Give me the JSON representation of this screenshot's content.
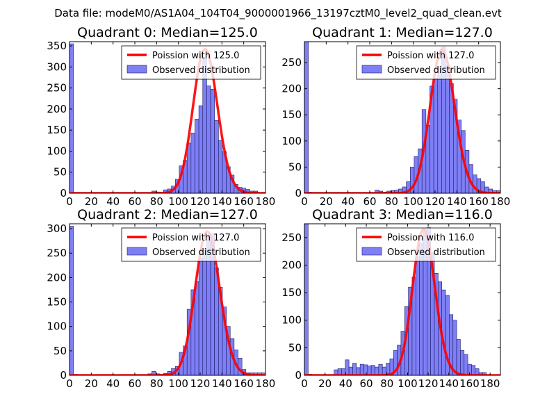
{
  "suptitle": "Data file: modeM0/AS1A04_104T04_9000001966_13197cztM0_level2_quad_clean.evt",
  "colors": {
    "bar_fill": "#7f7ff5",
    "bar_edge": "#1a1a66",
    "line": "#ff0000",
    "axis": "#000000"
  },
  "chart_data": [
    {
      "type": "bar",
      "title": "Quadrant 0: Median=125.0",
      "xlim": [
        0,
        180
      ],
      "ylim": [
        0,
        360
      ],
      "xticks": [
        0,
        20,
        40,
        60,
        80,
        100,
        120,
        140,
        160,
        180
      ],
      "xtick_labels": [
        "0",
        "20",
        "40",
        "60",
        "80",
        "100",
        "120",
        "140",
        "160",
        "180"
      ],
      "yticks": [
        0,
        50,
        100,
        150,
        200,
        250,
        300,
        350
      ],
      "ytick_labels": [
        "0",
        "50",
        "100",
        "150",
        "200",
        "250",
        "300",
        "350"
      ],
      "legend": {
        "line_label": "Poission with 125.0",
        "bar_label": "Observed distribution"
      },
      "poisson_mean": 125.0,
      "poisson_peak": 342,
      "bin_width": 3.6,
      "bins": [
        [
          0,
          355
        ],
        [
          3.6,
          2
        ],
        [
          7.2,
          1
        ],
        [
          10.8,
          1
        ],
        [
          14.4,
          1
        ],
        [
          18,
          1
        ],
        [
          21.6,
          1
        ],
        [
          25.2,
          1
        ],
        [
          28.8,
          1
        ],
        [
          32.4,
          1
        ],
        [
          36,
          1
        ],
        [
          39.6,
          1
        ],
        [
          43.2,
          1
        ],
        [
          46.8,
          1
        ],
        [
          50.4,
          1
        ],
        [
          54,
          1
        ],
        [
          57.6,
          1
        ],
        [
          61.2,
          1
        ],
        [
          64.8,
          1
        ],
        [
          68.4,
          1
        ],
        [
          72,
          1
        ],
        [
          75.6,
          5
        ],
        [
          79.2,
          3
        ],
        [
          82.8,
          2
        ],
        [
          86.4,
          8
        ],
        [
          90,
          10
        ],
        [
          93.6,
          17
        ],
        [
          97.2,
          33
        ],
        [
          100.8,
          65
        ],
        [
          104.4,
          78
        ],
        [
          108,
          119
        ],
        [
          111.6,
          143
        ],
        [
          115.2,
          176
        ],
        [
          118.8,
          208
        ],
        [
          122.4,
          320
        ],
        [
          126,
          255
        ],
        [
          129.6,
          247
        ],
        [
          133.2,
          173
        ],
        [
          136.8,
          125
        ],
        [
          140.4,
          99
        ],
        [
          144,
          63
        ],
        [
          147.6,
          43
        ],
        [
          151.2,
          21
        ],
        [
          154.8,
          14
        ],
        [
          158.4,
          12
        ],
        [
          162,
          9
        ],
        [
          165.6,
          5
        ],
        [
          169.2,
          5
        ],
        [
          172.8,
          1
        ],
        [
          176.4,
          1
        ]
      ]
    },
    {
      "type": "bar",
      "title": "Quadrant 1: Median=127.0",
      "xlim": [
        0,
        180
      ],
      "ylim": [
        0,
        290
      ],
      "xticks": [
        0,
        20,
        40,
        60,
        80,
        100,
        120,
        140,
        160,
        180
      ],
      "xtick_labels": [
        "0",
        "20",
        "40",
        "60",
        "80",
        "100",
        "120",
        "140",
        "160",
        "180"
      ],
      "yticks": [
        0,
        50,
        100,
        150,
        200,
        250
      ],
      "ytick_labels": [
        "0",
        "50",
        "100",
        "150",
        "200",
        "250"
      ],
      "legend": {
        "line_label": "Poission with 127.0",
        "bar_label": "Observed distribution"
      },
      "poisson_mean": 127.0,
      "poisson_peak": 275,
      "bin_width": 3.6,
      "bins": [
        [
          0,
          290
        ],
        [
          3.6,
          2
        ],
        [
          7.2,
          1
        ],
        [
          10.8,
          1
        ],
        [
          14.4,
          1
        ],
        [
          18,
          1
        ],
        [
          21.6,
          1
        ],
        [
          25.2,
          1
        ],
        [
          28.8,
          1
        ],
        [
          32.4,
          1
        ],
        [
          36,
          1
        ],
        [
          39.6,
          1
        ],
        [
          43.2,
          1
        ],
        [
          46.8,
          1
        ],
        [
          50.4,
          1
        ],
        [
          54,
          1
        ],
        [
          57.6,
          1
        ],
        [
          61.2,
          1
        ],
        [
          64.8,
          6
        ],
        [
          68.4,
          4
        ],
        [
          72,
          2
        ],
        [
          75.6,
          4
        ],
        [
          79.2,
          5
        ],
        [
          82.8,
          6
        ],
        [
          86.4,
          8
        ],
        [
          90,
          12
        ],
        [
          93.6,
          22
        ],
        [
          97.2,
          50
        ],
        [
          100.8,
          70
        ],
        [
          104.4,
          85
        ],
        [
          108,
          160
        ],
        [
          111.6,
          130
        ],
        [
          115.2,
          205
        ],
        [
          118.8,
          220
        ],
        [
          122.4,
          240
        ],
        [
          126,
          280
        ],
        [
          129.6,
          245
        ],
        [
          133.2,
          210
        ],
        [
          136.8,
          180
        ],
        [
          140.4,
          140
        ],
        [
          144,
          120
        ],
        [
          147.6,
          82
        ],
        [
          151.2,
          55
        ],
        [
          154.8,
          35
        ],
        [
          158.4,
          28
        ],
        [
          162,
          22
        ],
        [
          165.6,
          12
        ],
        [
          169.2,
          8
        ],
        [
          172.8,
          5
        ],
        [
          176.4,
          5
        ]
      ]
    },
    {
      "type": "bar",
      "title": "Quadrant 2: Median=127.0",
      "xlim": [
        0,
        180
      ],
      "ylim": [
        0,
        310
      ],
      "xticks": [
        0,
        20,
        40,
        60,
        80,
        100,
        120,
        140,
        160,
        180
      ],
      "xtick_labels": [
        "0",
        "20",
        "40",
        "60",
        "80",
        "100",
        "120",
        "140",
        "160",
        "180"
      ],
      "yticks": [
        0,
        50,
        100,
        150,
        200,
        250,
        300
      ],
      "ytick_labels": [
        "0",
        "50",
        "100",
        "150",
        "200",
        "250",
        "300"
      ],
      "legend": {
        "line_label": "Poission with 127.0",
        "bar_label": "Observed distribution"
      },
      "poisson_mean": 127.0,
      "poisson_peak": 294,
      "bin_width": 3.6,
      "bins": [
        [
          0,
          305
        ],
        [
          3.6,
          2
        ],
        [
          7.2,
          1
        ],
        [
          10.8,
          1
        ],
        [
          14.4,
          1
        ],
        [
          18,
          1
        ],
        [
          21.6,
          1
        ],
        [
          25.2,
          1
        ],
        [
          28.8,
          1
        ],
        [
          32.4,
          1
        ],
        [
          36,
          1
        ],
        [
          39.6,
          1
        ],
        [
          43.2,
          1
        ],
        [
          46.8,
          1
        ],
        [
          50.4,
          1
        ],
        [
          54,
          1
        ],
        [
          57.6,
          1
        ],
        [
          61.2,
          1
        ],
        [
          64.8,
          1
        ],
        [
          68.4,
          1
        ],
        [
          72,
          3
        ],
        [
          75.6,
          8
        ],
        [
          79.2,
          3
        ],
        [
          82.8,
          2
        ],
        [
          86.4,
          4
        ],
        [
          90,
          8
        ],
        [
          93.6,
          14
        ],
        [
          97.2,
          18
        ],
        [
          100.8,
          47
        ],
        [
          104.4,
          60
        ],
        [
          108,
          135
        ],
        [
          111.6,
          175
        ],
        [
          115.2,
          192
        ],
        [
          118.8,
          240
        ],
        [
          122.4,
          255
        ],
        [
          126,
          285
        ],
        [
          129.6,
          290
        ],
        [
          133.2,
          220
        ],
        [
          136.8,
          180
        ],
        [
          140.4,
          140
        ],
        [
          144,
          100
        ],
        [
          147.6,
          75
        ],
        [
          151.2,
          52
        ],
        [
          154.8,
          35
        ],
        [
          158.4,
          12
        ],
        [
          162,
          5
        ],
        [
          165.6,
          5
        ],
        [
          169.2,
          5
        ],
        [
          172.8,
          5
        ],
        [
          176.4,
          5
        ]
      ]
    },
    {
      "type": "bar",
      "title": "Quadrant 3: Median=116.0",
      "xlim": [
        0,
        190
      ],
      "ylim": [
        0,
        275
      ],
      "xticks": [
        0,
        20,
        40,
        60,
        80,
        100,
        120,
        140,
        160,
        180
      ],
      "xtick_labels": [
        "0",
        "20",
        "40",
        "60",
        "80",
        "100",
        "120",
        "140",
        "160",
        "180"
      ],
      "yticks": [
        0,
        50,
        100,
        150,
        200,
        250
      ],
      "ytick_labels": [
        "0",
        "50",
        "100",
        "150",
        "200",
        "250"
      ],
      "legend": {
        "line_label": "Poission with 116.0",
        "bar_label": "Observed distribution"
      },
      "poisson_mean": 116.0,
      "poisson_peak": 265,
      "bin_width": 3.6,
      "bins": [
        [
          0,
          275
        ],
        [
          3.6,
          2
        ],
        [
          7.2,
          1
        ],
        [
          10.8,
          1
        ],
        [
          14.4,
          1
        ],
        [
          18,
          1
        ],
        [
          21.6,
          1
        ],
        [
          25.2,
          1
        ],
        [
          28.8,
          10
        ],
        [
          32.4,
          12
        ],
        [
          36,
          12
        ],
        [
          39.6,
          28
        ],
        [
          43.2,
          15
        ],
        [
          46.8,
          22
        ],
        [
          50.4,
          14
        ],
        [
          54,
          20
        ],
        [
          57.6,
          19
        ],
        [
          61.2,
          17
        ],
        [
          64.8,
          18
        ],
        [
          68.4,
          15
        ],
        [
          72,
          20
        ],
        [
          75.6,
          15
        ],
        [
          79.2,
          22
        ],
        [
          82.8,
          30
        ],
        [
          86.4,
          45
        ],
        [
          90,
          55
        ],
        [
          93.6,
          80
        ],
        [
          97.2,
          125
        ],
        [
          100.8,
          160
        ],
        [
          104.4,
          178
        ],
        [
          108,
          215
        ],
        [
          111.6,
          240
        ],
        [
          115.2,
          265
        ],
        [
          118.8,
          268
        ],
        [
          122.4,
          222
        ],
        [
          126,
          185
        ],
        [
          129.6,
          170
        ],
        [
          133.2,
          155
        ],
        [
          136.8,
          145
        ],
        [
          140.4,
          110
        ],
        [
          144,
          100
        ],
        [
          147.6,
          65
        ],
        [
          151.2,
          45
        ],
        [
          154.8,
          38
        ],
        [
          158.4,
          20
        ],
        [
          162,
          18
        ],
        [
          165.6,
          12
        ],
        [
          169.2,
          5
        ],
        [
          172.8,
          5
        ],
        [
          176.4,
          1
        ]
      ]
    }
  ]
}
